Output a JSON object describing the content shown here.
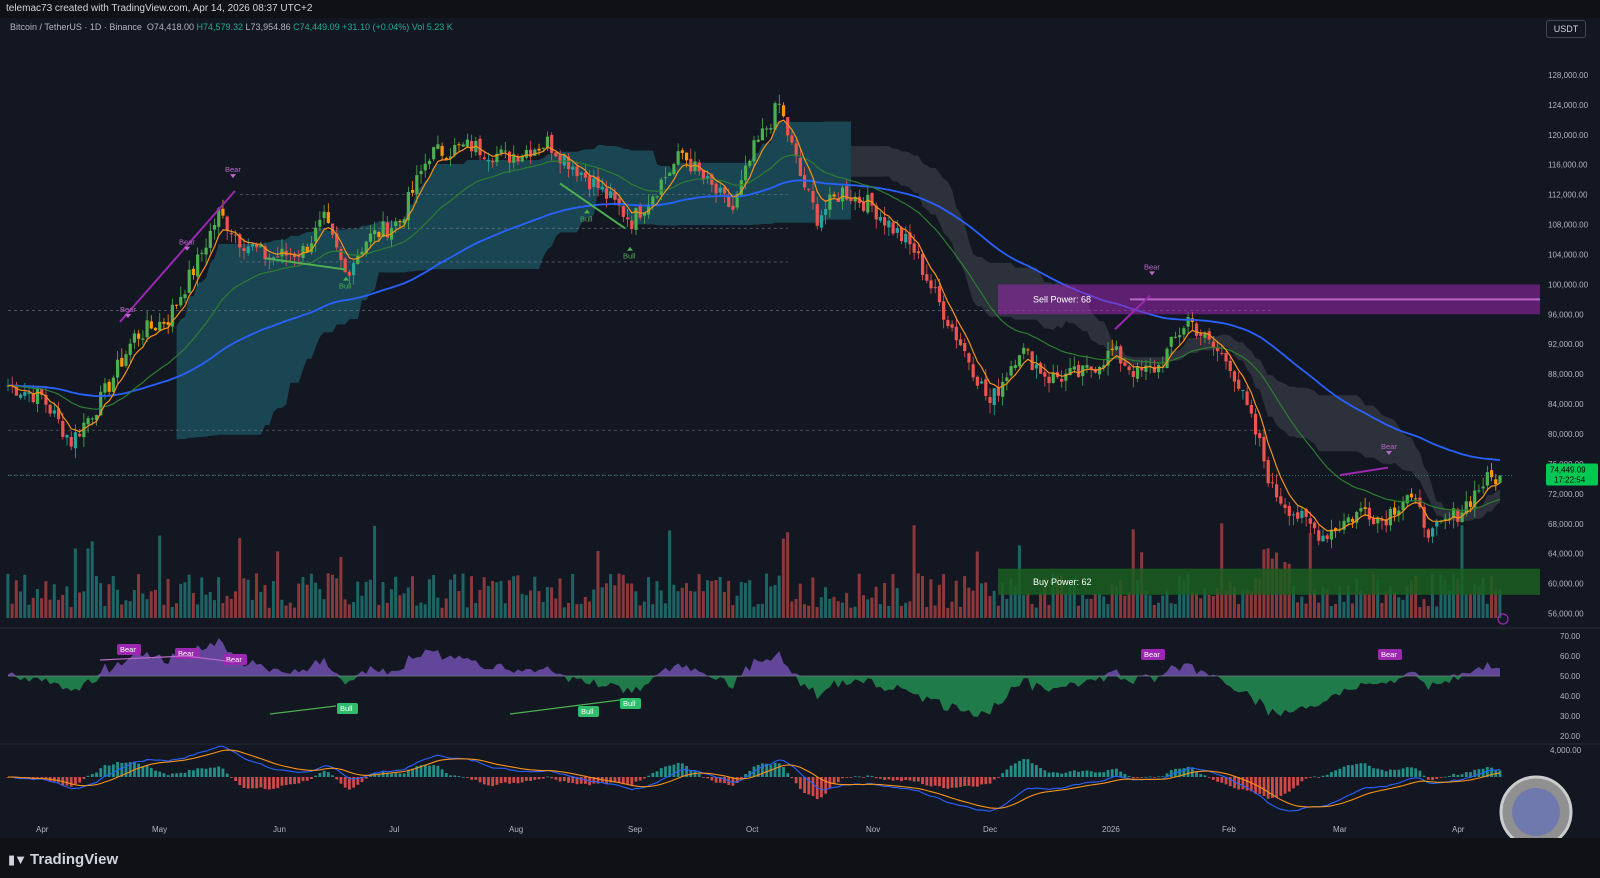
{
  "header": {
    "created_by": "telemac73 created with TradingView.com, Apr 14, 2026 08:37 UTC+2"
  },
  "legend": {
    "symbol": "Bitcoin / TetherUS · 1D · Binance",
    "open": "O74,418.00",
    "high": "H74,579.32",
    "low": "L73,954.86",
    "close": "C74,449.09",
    "change": "+31.10 (+0.04%)",
    "volume": "Vol 5.23 K"
  },
  "currency_button": "USDT",
  "brand": "TradingView",
  "colors": {
    "background": "#131722",
    "bull_candle": "#26a69a",
    "bull_candle_bright": "#4caf50",
    "bear_candle": "#ef5350",
    "ema_orange": "#f7931a",
    "ma_green": "#2e7d32",
    "ma_blue": "#2962ff",
    "cloud_teal": "#1e5f6e",
    "cloud_gray": "#5d606b",
    "divergence_purple": "#9c27b0",
    "bull_label": "#2ebd6b",
    "price_label": "#00c853"
  },
  "chart_data": [
    {
      "type": "candlestick",
      "title": "",
      "symbol": "BTCUSDT",
      "timeframe": "1D",
      "x_labels": [
        "Apr",
        "May",
        "Jun",
        "Jul",
        "Aug",
        "Sep",
        "Oct",
        "Nov",
        "Dec",
        "2026",
        "Feb",
        "Mar",
        "Apr"
      ],
      "y_ticks": [
        "128,000.00",
        "124,000.00",
        "120,000.00",
        "116,000.00",
        "112,000.00",
        "108,000.00",
        "104,000.00",
        "100,000.00",
        "96,000.00",
        "92,000.00",
        "88,000.00",
        "84,000.00",
        "80,000.00",
        "76,000.00",
        "72,000.00",
        "68,000.00",
        "64,000.00",
        "60,000.00",
        "56,000.00"
      ],
      "ylim": [
        55000,
        130000
      ],
      "last_price": "74,449.09",
      "countdown": "17:22:54",
      "close_path": [
        [
          0,
          86500
        ],
        [
          8,
          85000
        ],
        [
          15,
          79000
        ],
        [
          22,
          84500
        ],
        [
          30,
          93000
        ],
        [
          38,
          95500
        ],
        [
          45,
          103000
        ],
        [
          50,
          109500
        ],
        [
          55,
          106000
        ],
        [
          62,
          103500
        ],
        [
          70,
          104500
        ],
        [
          75,
          108500
        ],
        [
          80,
          101500
        ],
        [
          85,
          106000
        ],
        [
          93,
          108500
        ],
        [
          100,
          117500
        ],
        [
          110,
          118500
        ],
        [
          118,
          117000
        ],
        [
          128,
          119000
        ],
        [
          135,
          115500
        ],
        [
          140,
          113000
        ],
        [
          148,
          108500
        ],
        [
          152,
          111500
        ],
        [
          160,
          117500
        ],
        [
          165,
          114000
        ],
        [
          172,
          110000
        ],
        [
          177,
          118000
        ],
        [
          183,
          124000
        ],
        [
          188,
          114500
        ],
        [
          192,
          109000
        ],
        [
          198,
          112500
        ],
        [
          205,
          110500
        ],
        [
          210,
          107500
        ],
        [
          215,
          104500
        ],
        [
          220,
          98500
        ],
        [
          228,
          90000
        ],
        [
          233,
          84000
        ],
        [
          240,
          91500
        ],
        [
          247,
          87500
        ],
        [
          255,
          88000
        ],
        [
          262,
          91000
        ],
        [
          268,
          88000
        ],
        [
          273,
          89000
        ],
        [
          280,
          95500
        ],
        [
          285,
          92000
        ],
        [
          290,
          89500
        ],
        [
          297,
          78500
        ],
        [
          300,
          72500
        ],
        [
          307,
          68500
        ],
        [
          312,
          66500
        ],
        [
          316,
          68000
        ],
        [
          322,
          70000
        ],
        [
          326,
          68500
        ],
        [
          332,
          72000
        ],
        [
          338,
          66500
        ],
        [
          345,
          70000
        ],
        [
          350,
          73500
        ],
        [
          354,
          74449
        ]
      ],
      "moving_averages": [
        {
          "name": "",
          "color": "orange",
          "description": "fast EMA following price"
        },
        {
          "name": "",
          "color": "green",
          "description": "medium MA"
        },
        {
          "name": "",
          "color": "blue",
          "description": "slow MA"
        }
      ],
      "annotations": {
        "bear_labels": [
          "Bear",
          "Bear",
          "Bear",
          "Bear",
          "Bear"
        ],
        "bull_labels": [
          "Bull",
          "Bull",
          "Bull"
        ],
        "sell_power": "Sell Power: 68",
        "buy_power": "Buy Power: 62"
      },
      "horizontal_levels": [
        112000,
        107500,
        103000,
        80500,
        96500,
        74500
      ]
    },
    {
      "type": "area",
      "title": "",
      "y_ticks": [
        "70.00",
        "60.00",
        "50.00",
        "40.00",
        "30.00",
        "20.00"
      ],
      "ylim": [
        20,
        70
      ],
      "midline": 50,
      "labels": {
        "bear": [
          "Bear",
          "Bear",
          "Bear",
          "Bear",
          "Bear"
        ],
        "bull": [
          "Bull",
          "Bull",
          "Bull"
        ]
      }
    },
    {
      "type": "bar",
      "title": "",
      "y_ticks": [
        "4,000.00"
      ],
      "series": [
        {
          "name": "",
          "color": "blue"
        },
        {
          "name": "",
          "color": "orange"
        }
      ]
    }
  ]
}
